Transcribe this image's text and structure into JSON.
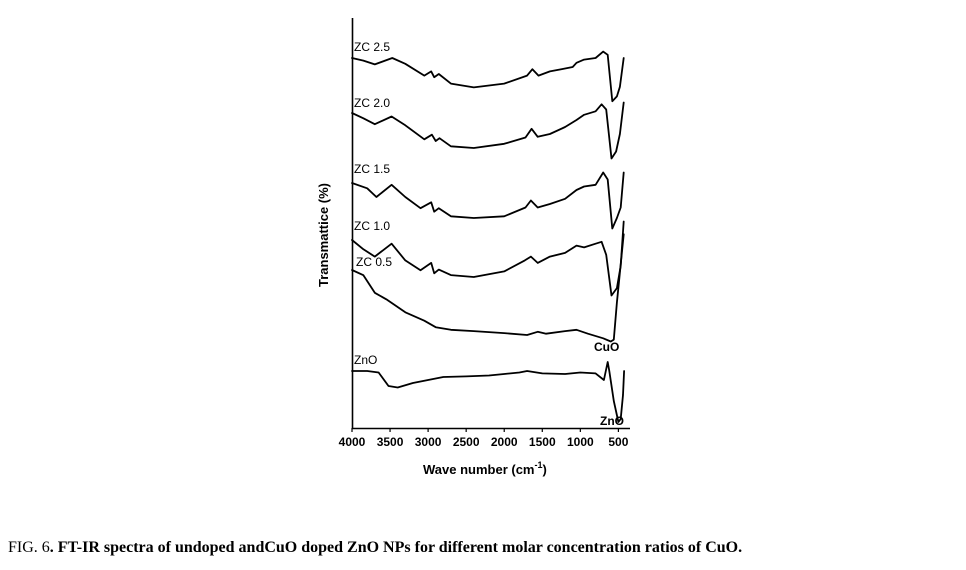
{
  "chart_data": {
    "type": "line",
    "xlabel_main": "Wave number (cm",
    "xlabel_sup": "-1",
    "xlabel_end": ")",
    "ylabel": "Transmattice (%)",
    "xlim": [
      4000,
      400
    ],
    "x_ticks": [
      "4000",
      "3500",
      "3000",
      "2500",
      "2000",
      "1500",
      "1000",
      "500"
    ],
    "y_ticks_shown": false,
    "series": [
      {
        "name": "ZC 2.5",
        "points": [
          [
            4000,
            0.0
          ],
          [
            3850,
            0.08
          ],
          [
            3700,
            0.2
          ],
          [
            3470,
            0.0
          ],
          [
            3300,
            0.18
          ],
          [
            3050,
            0.55
          ],
          [
            2960,
            0.42
          ],
          [
            2920,
            0.6
          ],
          [
            2860,
            0.5
          ],
          [
            2700,
            0.8
          ],
          [
            2400,
            0.92
          ],
          [
            2000,
            0.8
          ],
          [
            1700,
            0.55
          ],
          [
            1630,
            0.35
          ],
          [
            1550,
            0.55
          ],
          [
            1400,
            0.42
          ],
          [
            1250,
            0.35
          ],
          [
            1100,
            0.28
          ],
          [
            1050,
            0.15
          ],
          [
            950,
            0.05
          ],
          [
            800,
            0.0
          ],
          [
            700,
            -0.2
          ],
          [
            640,
            -0.1
          ],
          [
            580,
            1.35
          ],
          [
            520,
            1.2
          ],
          [
            480,
            0.9
          ],
          [
            430,
            0.0
          ]
        ]
      },
      {
        "name": "ZC 2.0",
        "points": [
          [
            4000,
            0.0
          ],
          [
            3850,
            0.15
          ],
          [
            3700,
            0.32
          ],
          [
            3480,
            0.1
          ],
          [
            3300,
            0.35
          ],
          [
            3050,
            0.75
          ],
          [
            2950,
            0.62
          ],
          [
            2900,
            0.8
          ],
          [
            2850,
            0.72
          ],
          [
            2700,
            0.95
          ],
          [
            2400,
            1.0
          ],
          [
            2000,
            0.88
          ],
          [
            1720,
            0.7
          ],
          [
            1640,
            0.45
          ],
          [
            1560,
            0.68
          ],
          [
            1400,
            0.6
          ],
          [
            1200,
            0.4
          ],
          [
            1050,
            0.2
          ],
          [
            950,
            0.05
          ],
          [
            800,
            -0.05
          ],
          [
            720,
            -0.25
          ],
          [
            660,
            -0.1
          ],
          [
            590,
            1.3
          ],
          [
            530,
            1.1
          ],
          [
            480,
            0.6
          ],
          [
            430,
            -0.3
          ]
        ]
      },
      {
        "name": "ZC 1.5",
        "points": [
          [
            4000,
            0.0
          ],
          [
            3800,
            0.15
          ],
          [
            3680,
            0.4
          ],
          [
            3480,
            0.05
          ],
          [
            3300,
            0.4
          ],
          [
            3100,
            0.72
          ],
          [
            2960,
            0.55
          ],
          [
            2920,
            0.82
          ],
          [
            2860,
            0.72
          ],
          [
            2700,
            0.95
          ],
          [
            2400,
            1.0
          ],
          [
            2000,
            0.95
          ],
          [
            1720,
            0.7
          ],
          [
            1650,
            0.5
          ],
          [
            1560,
            0.7
          ],
          [
            1400,
            0.6
          ],
          [
            1200,
            0.45
          ],
          [
            1050,
            0.2
          ],
          [
            950,
            0.1
          ],
          [
            800,
            0.05
          ],
          [
            700,
            -0.3
          ],
          [
            640,
            -0.1
          ],
          [
            580,
            1.3
          ],
          [
            520,
            1.0
          ],
          [
            470,
            0.7
          ],
          [
            430,
            -0.3
          ]
        ]
      },
      {
        "name": "ZC 1.0",
        "points": [
          [
            4000,
            0.0
          ],
          [
            3850,
            0.25
          ],
          [
            3700,
            0.45
          ],
          [
            3480,
            0.1
          ],
          [
            3300,
            0.55
          ],
          [
            3100,
            0.82
          ],
          [
            2960,
            0.62
          ],
          [
            2920,
            0.9
          ],
          [
            2860,
            0.8
          ],
          [
            2700,
            0.95
          ],
          [
            2400,
            1.0
          ],
          [
            2000,
            0.85
          ],
          [
            1730,
            0.55
          ],
          [
            1650,
            0.45
          ],
          [
            1560,
            0.62
          ],
          [
            1400,
            0.45
          ],
          [
            1200,
            0.35
          ],
          [
            1050,
            0.15
          ],
          [
            950,
            0.2
          ],
          [
            800,
            0.1
          ],
          [
            720,
            0.05
          ],
          [
            660,
            0.4
          ],
          [
            590,
            1.5
          ],
          [
            520,
            1.3
          ],
          [
            470,
            0.7
          ],
          [
            430,
            -0.5
          ]
        ]
      },
      {
        "name": "ZC 0.5",
        "points": [
          [
            4000,
            0.0
          ],
          [
            3850,
            0.08
          ],
          [
            3700,
            0.35
          ],
          [
            3550,
            0.45
          ],
          [
            3300,
            0.65
          ],
          [
            3050,
            0.78
          ],
          [
            2900,
            0.88
          ],
          [
            2700,
            0.92
          ],
          [
            2400,
            0.94
          ],
          [
            2000,
            0.97
          ],
          [
            1700,
            1.0
          ],
          [
            1560,
            0.95
          ],
          [
            1450,
            0.98
          ],
          [
            1200,
            0.94
          ],
          [
            1050,
            0.92
          ],
          [
            900,
            0.98
          ],
          [
            700,
            1.05
          ],
          [
            600,
            1.1
          ],
          [
            560,
            1.07
          ],
          [
            520,
            0.5
          ],
          [
            430,
            -0.55
          ]
        ]
      },
      {
        "name": "ZnO",
        "points": [
          [
            4000,
            0.0
          ],
          [
            3800,
            0.0
          ],
          [
            3650,
            0.05
          ],
          [
            3520,
            0.5
          ],
          [
            3400,
            0.55
          ],
          [
            3200,
            0.4
          ],
          [
            3000,
            0.3
          ],
          [
            2800,
            0.2
          ],
          [
            2500,
            0.18
          ],
          [
            2200,
            0.15
          ],
          [
            2000,
            0.1
          ],
          [
            1800,
            0.05
          ],
          [
            1700,
            0.0
          ],
          [
            1500,
            0.08
          ],
          [
            1200,
            0.1
          ],
          [
            1000,
            0.05
          ],
          [
            800,
            0.08
          ],
          [
            690,
            0.3
          ],
          [
            640,
            -0.3
          ],
          [
            620,
            0.0
          ],
          [
            560,
            1.0
          ],
          [
            500,
            1.7
          ],
          [
            470,
            1.6
          ],
          [
            440,
            0.8
          ],
          [
            425,
            0.0
          ]
        ]
      }
    ]
  },
  "annotations": {
    "cuo_label": "CuO",
    "zno_peak_label": "ZnO"
  },
  "caption": {
    "prefix": "FIG. 6",
    "text": ". FT-IR spectra of undoped andCuO doped ZnO NPs for different molar concentration ratios of CuO."
  }
}
